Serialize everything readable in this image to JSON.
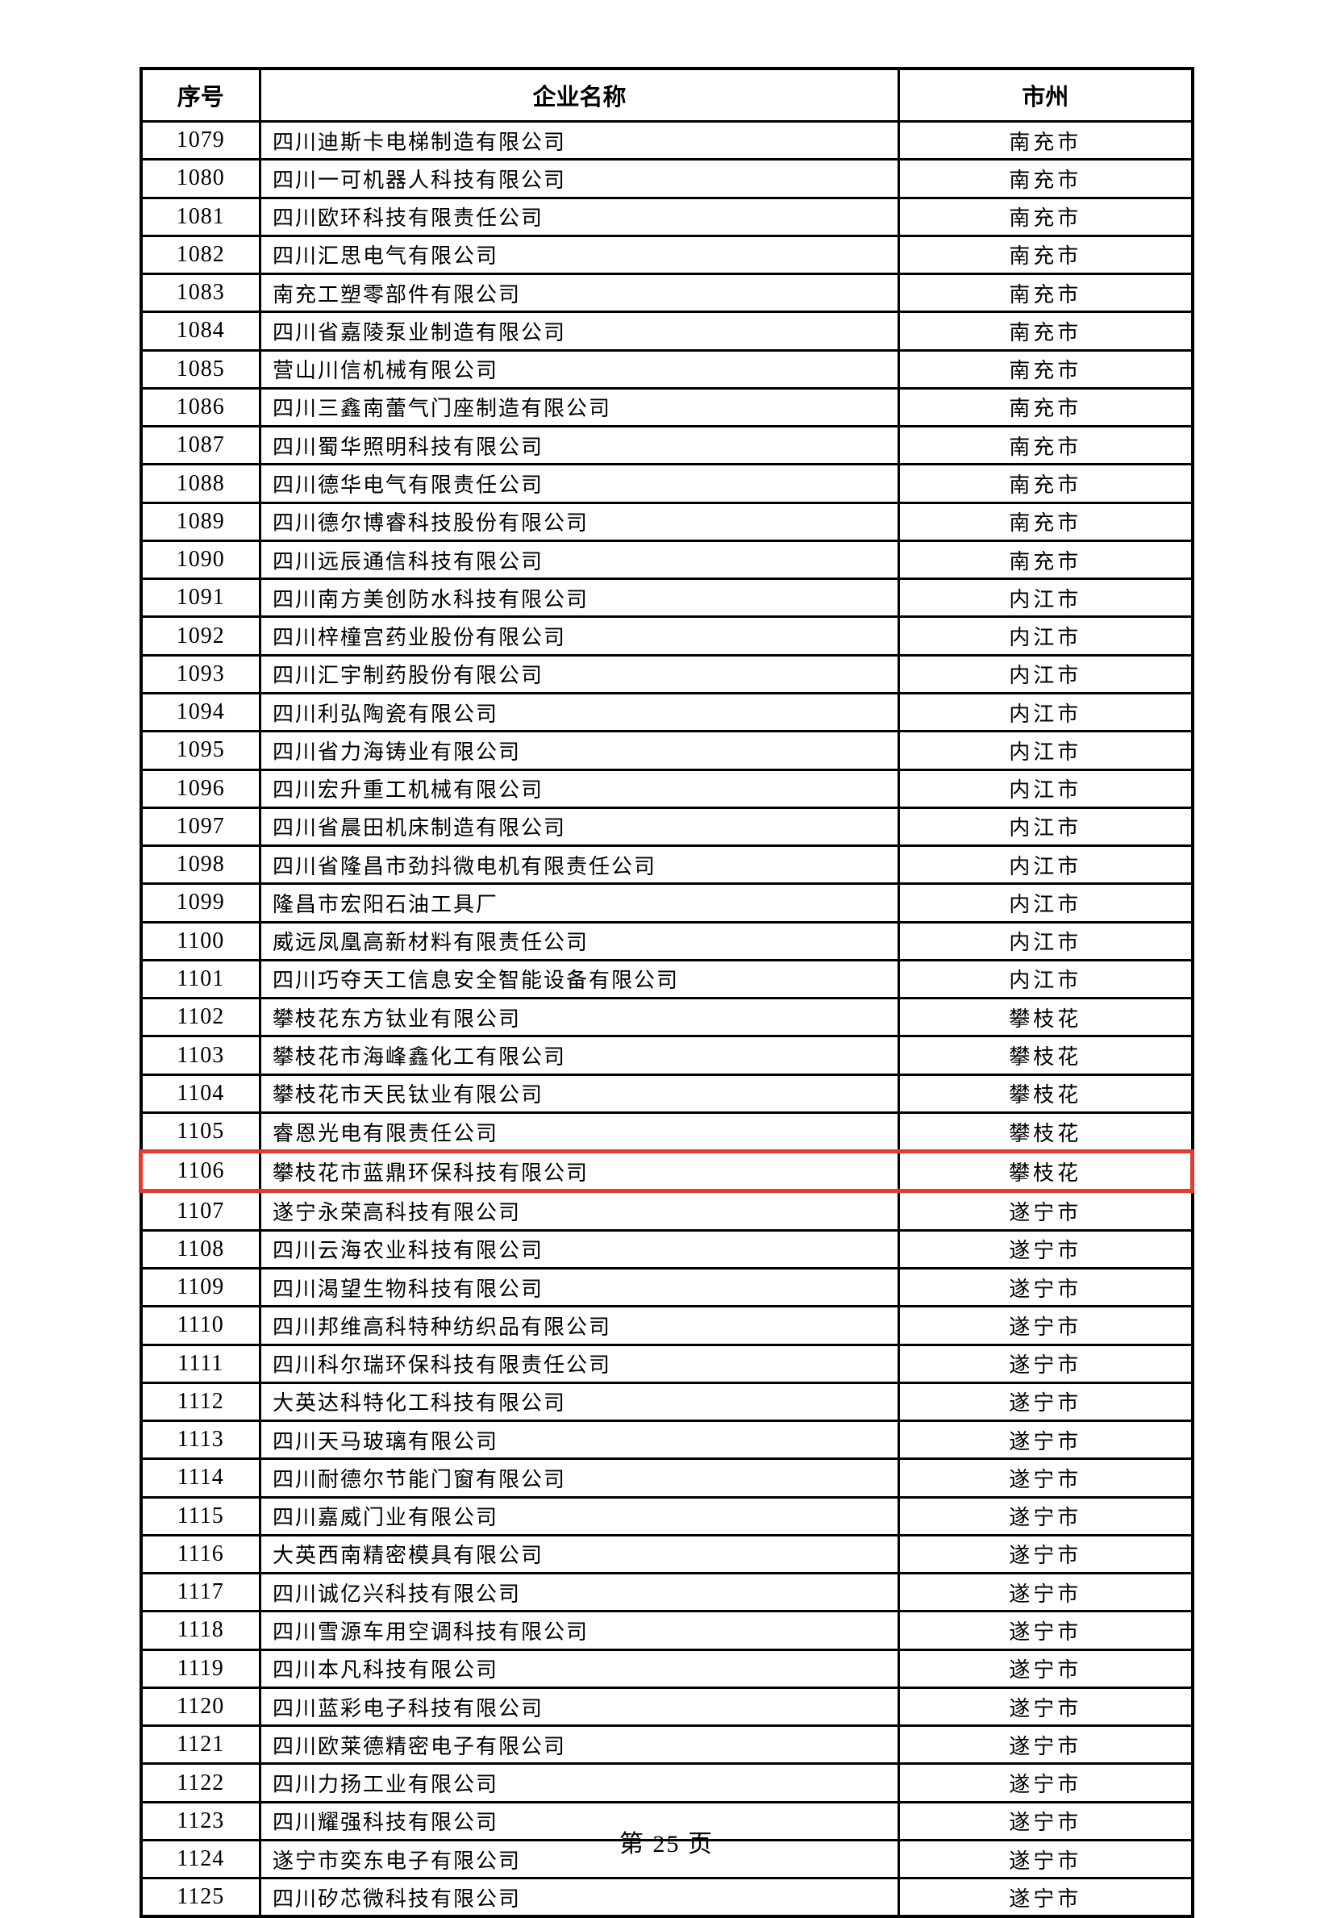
{
  "page": {
    "number_label": "第 25 页"
  },
  "table": {
    "headers": [
      "序号",
      "企业名称",
      "市州"
    ],
    "highlighted_serial": "1106",
    "highlight_color": "#e53a2e",
    "rows": [
      {
        "serial": "1079",
        "name": "四川迪斯卡电梯制造有限公司",
        "city": "南充市"
      },
      {
        "serial": "1080",
        "name": "四川一可机器人科技有限公司",
        "city": "南充市"
      },
      {
        "serial": "1081",
        "name": "四川欧环科技有限责任公司",
        "city": "南充市"
      },
      {
        "serial": "1082",
        "name": "四川汇思电气有限公司",
        "city": "南充市"
      },
      {
        "serial": "1083",
        "name": "南充工塑零部件有限公司",
        "city": "南充市"
      },
      {
        "serial": "1084",
        "name": "四川省嘉陵泵业制造有限公司",
        "city": "南充市"
      },
      {
        "serial": "1085",
        "name": "营山川信机械有限公司",
        "city": "南充市"
      },
      {
        "serial": "1086",
        "name": "四川三鑫南蕾气门座制造有限公司",
        "city": "南充市"
      },
      {
        "serial": "1087",
        "name": "四川蜀华照明科技有限公司",
        "city": "南充市"
      },
      {
        "serial": "1088",
        "name": "四川德华电气有限责任公司",
        "city": "南充市"
      },
      {
        "serial": "1089",
        "name": "四川德尔博睿科技股份有限公司",
        "city": "南充市"
      },
      {
        "serial": "1090",
        "name": "四川远辰通信科技有限公司",
        "city": "南充市"
      },
      {
        "serial": "1091",
        "name": "四川南方美创防水科技有限公司",
        "city": "内江市"
      },
      {
        "serial": "1092",
        "name": "四川梓橦宫药业股份有限公司",
        "city": "内江市"
      },
      {
        "serial": "1093",
        "name": "四川汇宇制药股份有限公司",
        "city": "内江市"
      },
      {
        "serial": "1094",
        "name": "四川利弘陶瓷有限公司",
        "city": "内江市"
      },
      {
        "serial": "1095",
        "name": "四川省力海铸业有限公司",
        "city": "内江市"
      },
      {
        "serial": "1096",
        "name": "四川宏升重工机械有限公司",
        "city": "内江市"
      },
      {
        "serial": "1097",
        "name": "四川省晨田机床制造有限公司",
        "city": "内江市"
      },
      {
        "serial": "1098",
        "name": "四川省隆昌市劲抖微电机有限责任公司",
        "city": "内江市"
      },
      {
        "serial": "1099",
        "name": "隆昌市宏阳石油工具厂",
        "city": "内江市"
      },
      {
        "serial": "1100",
        "name": "威远凤凰高新材料有限责任公司",
        "city": "内江市"
      },
      {
        "serial": "1101",
        "name": "四川巧夺天工信息安全智能设备有限公司",
        "city": "内江市"
      },
      {
        "serial": "1102",
        "name": "攀枝花东方钛业有限公司",
        "city": "攀枝花"
      },
      {
        "serial": "1103",
        "name": "攀枝花市海峰鑫化工有限公司",
        "city": "攀枝花"
      },
      {
        "serial": "1104",
        "name": "攀枝花市天民钛业有限公司",
        "city": "攀枝花"
      },
      {
        "serial": "1105",
        "name": "睿恩光电有限责任公司",
        "city": "攀枝花"
      },
      {
        "serial": "1106",
        "name": "攀枝花市蓝鼎环保科技有限公司",
        "city": "攀枝花"
      },
      {
        "serial": "1107",
        "name": "遂宁永荣高科技有限公司",
        "city": "遂宁市"
      },
      {
        "serial": "1108",
        "name": "四川云海农业科技有限公司",
        "city": "遂宁市"
      },
      {
        "serial": "1109",
        "name": "四川渴望生物科技有限公司",
        "city": "遂宁市"
      },
      {
        "serial": "1110",
        "name": "四川邦维高科特种纺织品有限公司",
        "city": "遂宁市"
      },
      {
        "serial": "1111",
        "name": "四川科尔瑞环保科技有限责任公司",
        "city": "遂宁市"
      },
      {
        "serial": "1112",
        "name": "大英达科特化工科技有限公司",
        "city": "遂宁市"
      },
      {
        "serial": "1113",
        "name": "四川天马玻璃有限公司",
        "city": "遂宁市"
      },
      {
        "serial": "1114",
        "name": "四川耐德尔节能门窗有限公司",
        "city": "遂宁市"
      },
      {
        "serial": "1115",
        "name": "四川嘉威门业有限公司",
        "city": "遂宁市"
      },
      {
        "serial": "1116",
        "name": "大英西南精密模具有限公司",
        "city": "遂宁市"
      },
      {
        "serial": "1117",
        "name": "四川诚亿兴科技有限公司",
        "city": "遂宁市"
      },
      {
        "serial": "1118",
        "name": "四川雪源车用空调科技有限公司",
        "city": "遂宁市"
      },
      {
        "serial": "1119",
        "name": "四川本凡科技有限公司",
        "city": "遂宁市"
      },
      {
        "serial": "1120",
        "name": "四川蓝彩电子科技有限公司",
        "city": "遂宁市"
      },
      {
        "serial": "1121",
        "name": "四川欧莱德精密电子有限公司",
        "city": "遂宁市"
      },
      {
        "serial": "1122",
        "name": "四川力扬工业有限公司",
        "city": "遂宁市"
      },
      {
        "serial": "1123",
        "name": "四川耀强科技有限公司",
        "city": "遂宁市"
      },
      {
        "serial": "1124",
        "name": "遂宁市奕东电子有限公司",
        "city": "遂宁市"
      },
      {
        "serial": "1125",
        "name": "四川矽芯微科技有限公司",
        "city": "遂宁市"
      }
    ]
  }
}
